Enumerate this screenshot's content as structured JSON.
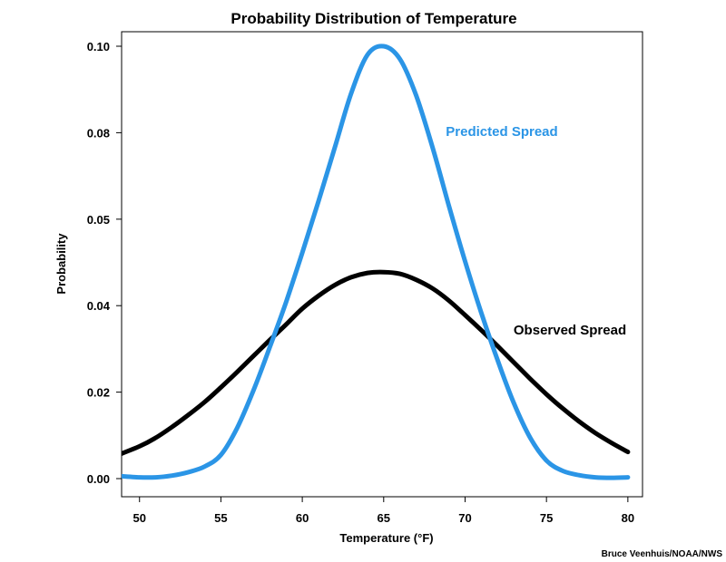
{
  "chart_data": {
    "type": "line",
    "title": "Probability Distribution of Temperature",
    "xlabel": "Temperature (°F)",
    "ylabel": "Probability",
    "x_ticks": [
      "50",
      "55",
      "60",
      "65",
      "70",
      "75",
      "80"
    ],
    "y_ticks": [
      "0.00",
      "0.02",
      "0.04",
      "0.05",
      "0.08",
      "0.10"
    ],
    "grid": false,
    "series": [
      {
        "name": "Predicted Spread",
        "color": "#2b95e6",
        "x": [
          48,
          50,
          51,
          52,
          53,
          54,
          55,
          56,
          57,
          58,
          59,
          60,
          61,
          62,
          63,
          64,
          65,
          66,
          67,
          68,
          69,
          70,
          71,
          72,
          73,
          74,
          75,
          76,
          77,
          78,
          79,
          80
        ],
        "y": [
          0.0008,
          0.0003,
          0.0003,
          0.0007,
          0.0015,
          0.0028,
          0.0055,
          0.0118,
          0.0205,
          0.0305,
          0.041,
          0.0525,
          0.0645,
          0.077,
          0.0895,
          0.0985,
          0.1005,
          0.0975,
          0.089,
          0.077,
          0.0635,
          0.0505,
          0.0385,
          0.0275,
          0.0175,
          0.0095,
          0.0042,
          0.0018,
          0.0008,
          0.0003,
          0.0002,
          0.0003
        ]
      },
      {
        "name": "Observed Spread",
        "color": "#000000",
        "x": [
          48,
          50,
          51,
          52,
          53,
          54,
          55,
          56,
          57,
          58,
          59,
          60,
          61,
          62,
          63,
          64,
          65,
          66,
          67,
          68,
          69,
          70,
          71,
          72,
          73,
          74,
          75,
          76,
          77,
          78,
          79,
          80
        ],
        "y": [
          0.0045,
          0.0075,
          0.0095,
          0.012,
          0.0148,
          0.0178,
          0.0212,
          0.0248,
          0.0285,
          0.0322,
          0.0358,
          0.0395,
          0.0425,
          0.045,
          0.0468,
          0.0478,
          0.048,
          0.0476,
          0.0462,
          0.0442,
          0.0414,
          0.038,
          0.0345,
          0.0308,
          0.027,
          0.0232,
          0.0196,
          0.0163,
          0.0133,
          0.0106,
          0.0083,
          0.0062
        ]
      }
    ],
    "credit": "Bruce Veenhuis/NOAA/NWS"
  }
}
